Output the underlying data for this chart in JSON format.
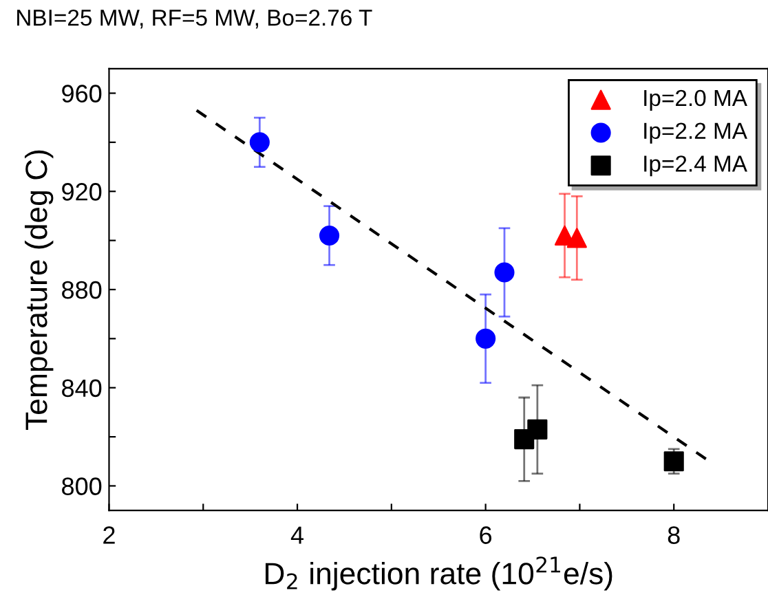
{
  "chart_data": {
    "type": "scatter",
    "title": "NBI=25 MW, RF=5 MW, Bo=2.76 T",
    "xlabel": "D$_{2}$ injection rate (10$^{21}$e/s)",
    "ylabel": "Temperature (deg C)",
    "xlim": [
      2,
      9
    ],
    "ylim": [
      790,
      970
    ],
    "xticks": [
      2,
      {
        "value": 3,
        "label": null
      },
      4,
      {
        "value": 5,
        "label": null
      },
      6,
      {
        "value": 7,
        "label": null
      },
      8
    ],
    "yticks": [
      800,
      {
        "value": 820,
        "label": null
      },
      840,
      {
        "value": 860,
        "label": null
      },
      880,
      {
        "value": 900,
        "label": null
      },
      920,
      {
        "value": 940,
        "label": null
      },
      960
    ],
    "grid": false,
    "legend": "top right",
    "series": [
      {
        "name": "Ip=2.0 MA",
        "color": "#ff0000",
        "marker": "triangle",
        "x": [
          6.84,
          6.97
        ],
        "values": [
          902,
          901
        ],
        "errors": [
          17,
          17
        ]
      },
      {
        "name": "Ip=2.2 MA",
        "color": "#0000ff",
        "marker": "circle",
        "x": [
          3.6,
          4.34,
          6.0,
          6.2
        ],
        "values": [
          940,
          902,
          860,
          887
        ],
        "errors": [
          10,
          12,
          18,
          18
        ]
      },
      {
        "name": "Ip=2.4 MA",
        "color": "#000000",
        "marker": "square",
        "x": [
          6.41,
          6.55,
          8.0
        ],
        "values": [
          819,
          823,
          810
        ],
        "errors": [
          17,
          18,
          5
        ]
      },
      {
        "type": "line",
        "color": "#000000",
        "line_style": "dashed",
        "marker": "none",
        "x": [
          2.93,
          8.34
        ],
        "values": [
          953,
          811
        ]
      }
    ]
  }
}
